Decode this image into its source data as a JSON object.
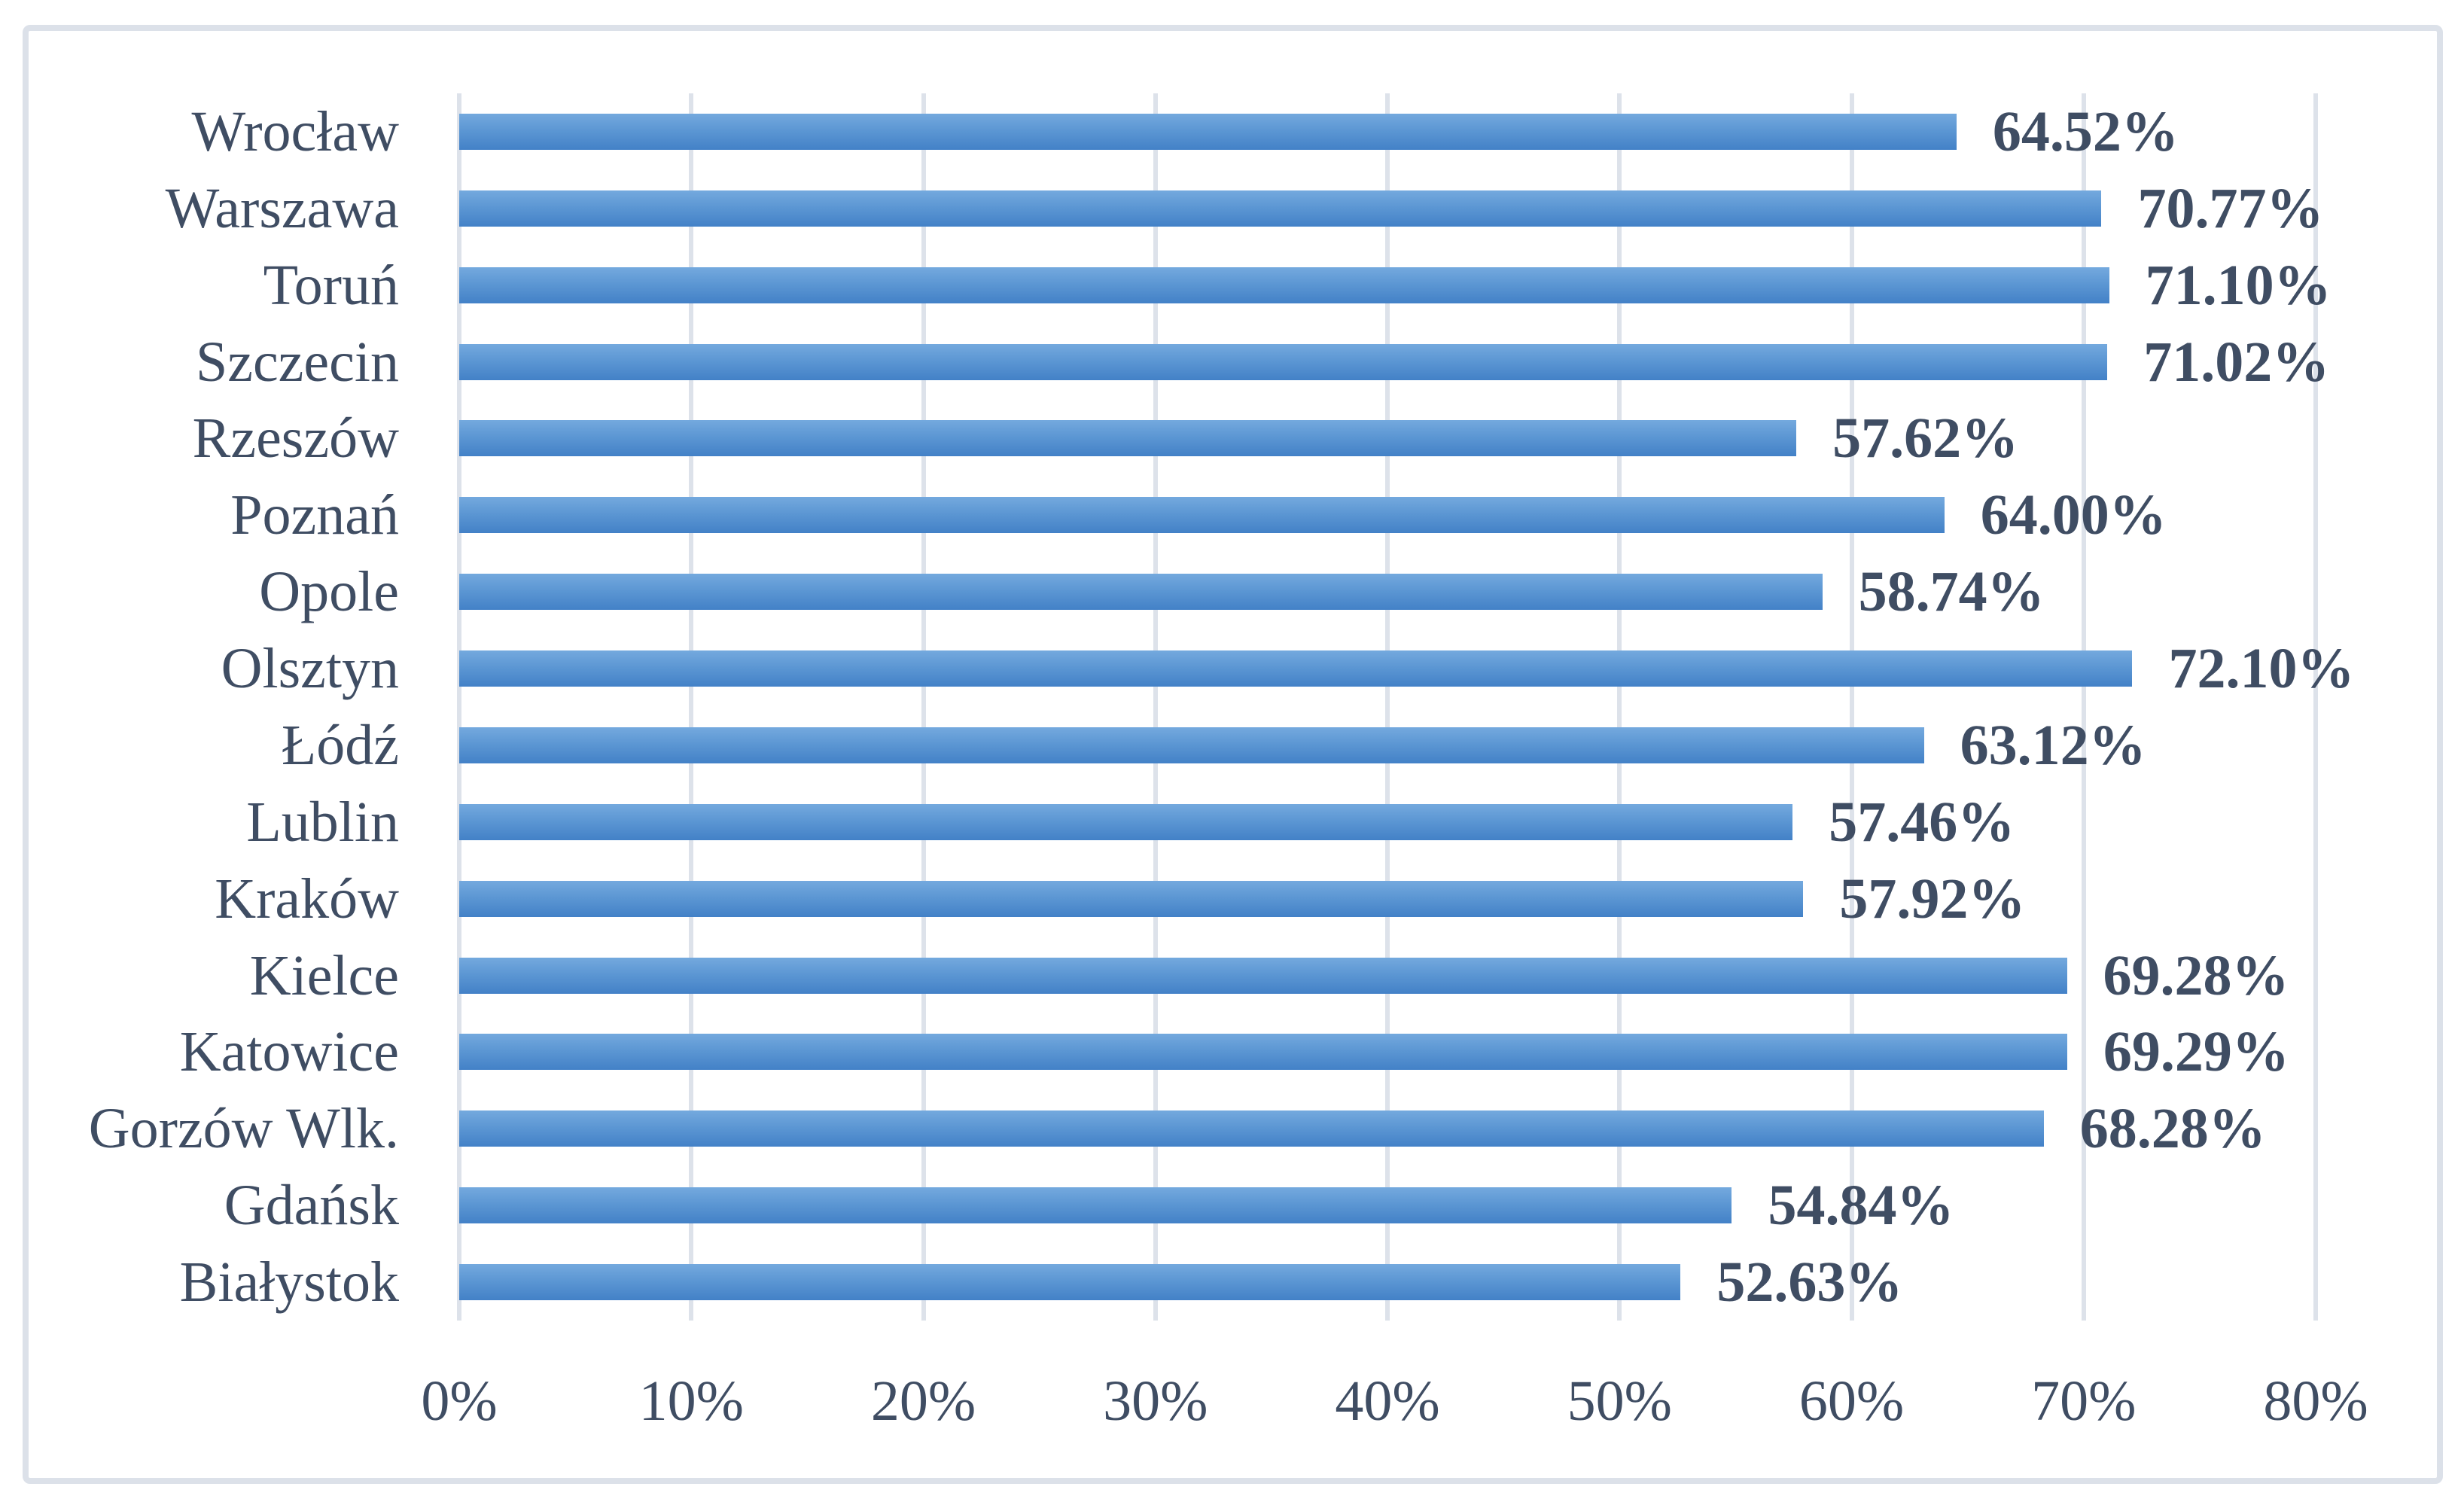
{
  "chart_data": {
    "type": "bar",
    "orientation": "horizontal",
    "title": "",
    "xlabel": "",
    "ylabel": "",
    "categories": [
      "Wrocław",
      "Warszawa",
      "Toruń",
      "Szczecin",
      "Rzeszów",
      "Poznań",
      "Opole",
      "Olsztyn",
      "Łódź",
      "Lublin",
      "Kraków",
      "Kielce",
      "Katowice",
      "Gorzów Wlk.",
      "Gdańsk",
      "Białystok"
    ],
    "values": [
      64.52,
      70.77,
      71.1,
      71.02,
      57.62,
      64.0,
      58.74,
      72.1,
      63.12,
      57.46,
      57.92,
      69.28,
      69.29,
      68.28,
      54.84,
      52.63
    ],
    "data_labels": [
      "64.52%",
      "70.77%",
      "71.10%",
      "71.02%",
      "57.62%",
      "64.00%",
      "58.74%",
      "72.10%",
      "63.12%",
      "57.46%",
      "57.92%",
      "69.28%",
      "69.29%",
      "68.28%",
      "54.84%",
      "52.63%"
    ],
    "x_ticks": [
      "0%",
      "10%",
      "20%",
      "30%",
      "40%",
      "50%",
      "60%",
      "70%",
      "80%"
    ],
    "xlim": [
      0,
      80
    ],
    "grid": true,
    "legend": "none",
    "colors": {
      "bar_gradient_top": "#74a9de",
      "bar_gradient_mid": "#5b96d3",
      "bar_gradient_bottom": "#4381c7",
      "text": "#3f4d63",
      "gridline": "#dde2ea",
      "frame_border": "#dce1e9",
      "background": "#ffffff"
    }
  }
}
